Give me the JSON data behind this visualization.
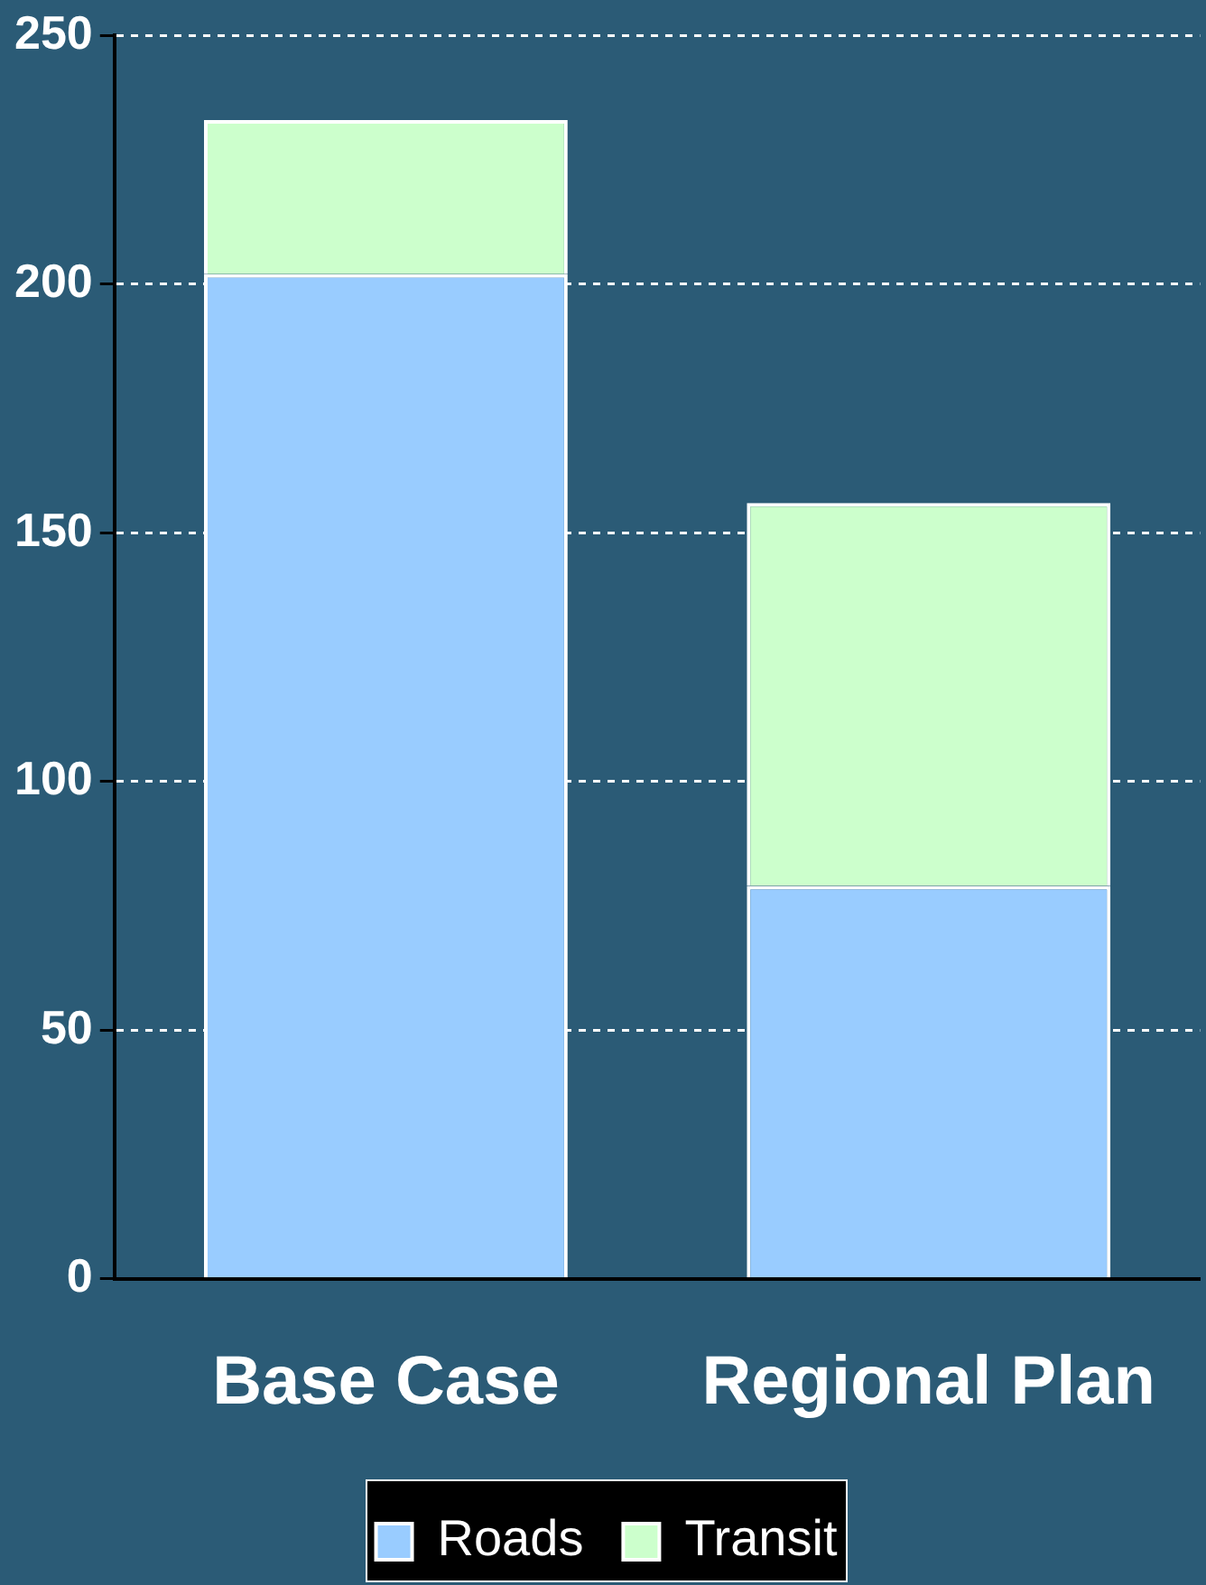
{
  "chart_data": {
    "type": "bar",
    "stacked": true,
    "categories": [
      "Base Case",
      "Regional Plan"
    ],
    "series": [
      {
        "name": "Roads",
        "color": "#99ccff",
        "values": [
          202,
          79
        ]
      },
      {
        "name": "Transit",
        "color": "#ccffcc",
        "values": [
          31,
          77
        ]
      }
    ],
    "ylim": [
      0,
      250
    ],
    "yticks": [
      0,
      50,
      100,
      150,
      200,
      250
    ],
    "grid": "y",
    "legend": "bottom"
  }
}
